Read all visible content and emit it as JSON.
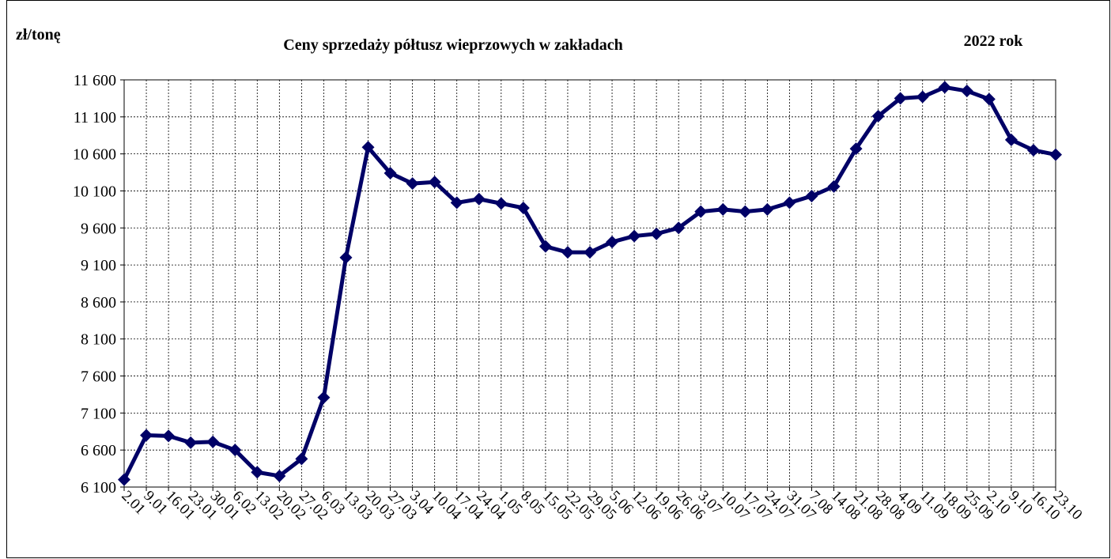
{
  "chart_data": {
    "type": "line",
    "title": "Ceny sprzedaży półtusz wieprzowych w zakładach",
    "ylabel": "zł/tonę",
    "subtitle": "2022 rok",
    "categories": [
      "2.01",
      "9.01",
      "16.01",
      "23.01",
      "30.01",
      "6.02",
      "13.02",
      "20.02",
      "27.02",
      "6.03",
      "13.03",
      "20.03",
      "27.03",
      "3.04",
      "10.04",
      "17.04",
      "24.04",
      "1.05",
      "8.05",
      "15.05",
      "22.05",
      "29.05",
      "5.06",
      "12.06",
      "19.06",
      "26.06",
      "3.07",
      "10.07",
      "17.07",
      "24.07",
      "31.07",
      "7.08",
      "14.08",
      "21.08",
      "28.08",
      "4.09",
      "11.09",
      "18.09",
      "25.09",
      "2.10",
      "9.10",
      "16.10",
      "23.10"
    ],
    "series": [
      {
        "name": "Ceny",
        "color": "#000066",
        "values": [
          6200,
          6800,
          6790,
          6700,
          6710,
          6600,
          6300,
          6250,
          6480,
          7310,
          9200,
          10690,
          10340,
          10200,
          10220,
          9940,
          9990,
          9930,
          9870,
          9350,
          9270,
          9270,
          9410,
          9490,
          9520,
          9600,
          9820,
          9850,
          9820,
          9850,
          9940,
          10030,
          10160,
          10670,
          11110,
          11350,
          11370,
          11500,
          11450,
          11340,
          10790,
          10650,
          10590
        ]
      }
    ],
    "ylim": [
      6100,
      11600
    ],
    "yticks": [
      {
        "value": 6100,
        "label": "6 100"
      },
      {
        "value": 6600,
        "label": "6 600"
      },
      {
        "value": 7100,
        "label": "7 100"
      },
      {
        "value": 7600,
        "label": "7 600"
      },
      {
        "value": 8100,
        "label": "8 100"
      },
      {
        "value": 8600,
        "label": "8 600"
      },
      {
        "value": 9100,
        "label": "9 100"
      },
      {
        "value": 9600,
        "label": "9 600"
      },
      {
        "value": 10100,
        "label": "10 100"
      },
      {
        "value": 10600,
        "label": "10 600"
      },
      {
        "value": 11100,
        "label": "11 100"
      },
      {
        "value": 11600,
        "label": "11 600"
      }
    ],
    "grid": true
  }
}
